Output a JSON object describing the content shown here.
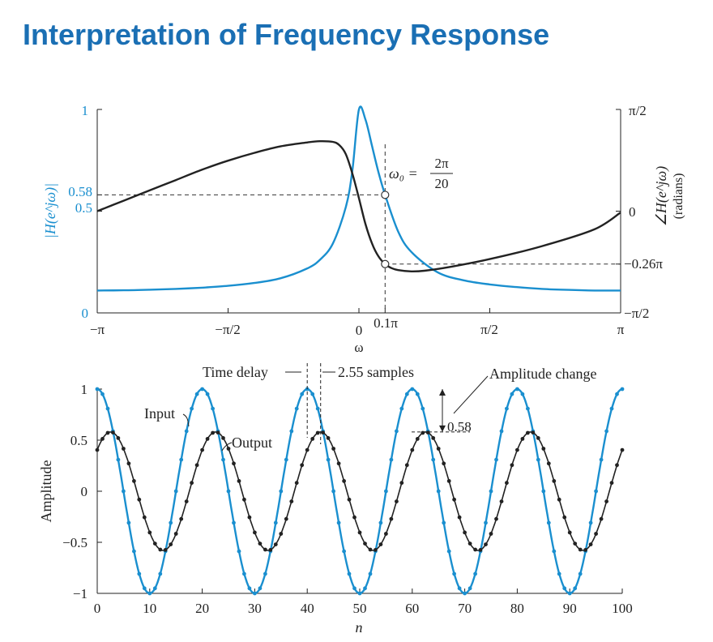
{
  "slide_title": "Interpretation of Frequency Response",
  "colors": {
    "blue": "#1a8fcf",
    "black": "#222222",
    "title": "#1a6fb4"
  },
  "chart_data": [
    {
      "type": "line",
      "name": "frequency-response",
      "xlabel": "ω",
      "ylabel_left": "|H(e^jω)|",
      "ylabel_right_1": "∠H(e^jω)",
      "ylabel_right_2": "(radians)",
      "x_range": [
        -3.1416,
        3.1416
      ],
      "ylim_left": [
        0,
        1
      ],
      "ylim_right": [
        -1.5708,
        1.5708
      ],
      "x_ticks": [
        {
          "value": -3.1416,
          "label": "−π"
        },
        {
          "value": -1.5708,
          "label": "−π/2"
        },
        {
          "value": 0,
          "label": "0"
        },
        {
          "value": 0.3142,
          "label": "0.1π"
        },
        {
          "value": 1.5708,
          "label": "π/2"
        },
        {
          "value": 3.1416,
          "label": "π"
        }
      ],
      "left_ticks": [
        {
          "value": 0,
          "label": "0"
        },
        {
          "value": 0.5,
          "label": "0.5"
        },
        {
          "value": 0.58,
          "label": "0.58"
        },
        {
          "value": 1,
          "label": "1"
        }
      ],
      "right_ticks": [
        {
          "value": 1.5708,
          "label": "π/2"
        },
        {
          "value": 0,
          "label": "0"
        },
        {
          "value": -0.8168,
          "label": "−0.26π"
        },
        {
          "value": -1.5708,
          "label": "−π/2"
        }
      ],
      "series": [
        {
          "name": "|H(e^jω)|",
          "color": "#1a8fcf",
          "axis": "left",
          "x": [
            -3.1416,
            -2.8274,
            -2.5133,
            -2.1991,
            -1.885,
            -1.5708,
            -1.2566,
            -0.9425,
            -0.6283,
            -0.4712,
            -0.3142,
            -0.1571,
            -0.0785,
            0,
            0.0785,
            0.1571,
            0.2356,
            0.3142,
            0.4712,
            0.6283,
            0.9425,
            1.2566,
            1.5708,
            1.885,
            2.1991,
            2.5133,
            2.8274,
            3.1416
          ],
          "values": [
            0.11,
            0.111,
            0.114,
            0.118,
            0.124,
            0.133,
            0.147,
            0.17,
            0.217,
            0.26,
            0.34,
            0.52,
            0.7,
            1.0,
            0.95,
            0.82,
            0.69,
            0.58,
            0.4,
            0.3,
            0.2,
            0.16,
            0.14,
            0.127,
            0.118,
            0.113,
            0.11,
            0.11
          ]
        },
        {
          "name": "∠H(e^jω)",
          "color": "#222222",
          "axis": "right",
          "x": [
            -3.1416,
            -2.8274,
            -2.5133,
            -2.1991,
            -1.885,
            -1.5708,
            -1.2566,
            -0.9425,
            -0.6283,
            -0.4712,
            -0.3142,
            -0.2356,
            -0.1571,
            -0.0785,
            0,
            0.0785,
            0.1571,
            0.2356,
            0.3142,
            0.3927,
            0.4712,
            0.6283,
            0.7854,
            1.0996,
            1.5708,
            2.1991,
            2.8274,
            3.1416
          ],
          "values": [
            0,
            0.16,
            0.32,
            0.48,
            0.64,
            0.78,
            0.9,
            1.0,
            1.06,
            1.08,
            1.07,
            1.02,
            0.88,
            0.58,
            0.2,
            -0.2,
            -0.5,
            -0.7,
            -0.8168,
            -0.88,
            -0.91,
            -0.93,
            -0.92,
            -0.86,
            -0.74,
            -0.54,
            -0.28,
            -0.02
          ]
        }
      ],
      "annotations": {
        "omega0_lhs": "ω₀ =",
        "omega0_num": "2π",
        "omega0_den": "20",
        "omega0_value": 0.3142,
        "mag_at_omega0": 0.58,
        "phase_at_omega0": -0.8168
      }
    },
    {
      "type": "line",
      "name": "time-response",
      "xlabel": "n",
      "ylabel": "Amplitude",
      "x_range": [
        0,
        100
      ],
      "ylim": [
        -1,
        1
      ],
      "x_ticks": [
        0,
        10,
        20,
        30,
        40,
        50,
        60,
        70,
        80,
        90,
        100
      ],
      "y_ticks": [
        {
          "value": 1,
          "label": "1"
        },
        {
          "value": 0.5,
          "label": "0.5"
        },
        {
          "value": 0,
          "label": "0"
        },
        {
          "value": -0.5,
          "label": "−0.5"
        },
        {
          "value": -1,
          "label": "−1"
        }
      ],
      "series": [
        {
          "name": "Input",
          "color": "#1a8fcf",
          "n_start": 0,
          "n_end": 100,
          "amplitude": 1,
          "period": 20,
          "phase_shift_samples": 0
        },
        {
          "name": "Output",
          "color": "#222222",
          "n_start": 0,
          "n_end": 100,
          "amplitude": 0.58,
          "period": 20,
          "phase_shift_samples": 2.55
        }
      ],
      "annotations": {
        "input_label": "Input",
        "output_label": "Output",
        "time_delay_label": "Time delay",
        "samples_label": "2.55 samples",
        "delay_samples": 2.55,
        "amplitude_change_label": "Amplitude change",
        "amplitude_value_label": "0.58",
        "amplitude_value": 0.58
      }
    }
  ]
}
